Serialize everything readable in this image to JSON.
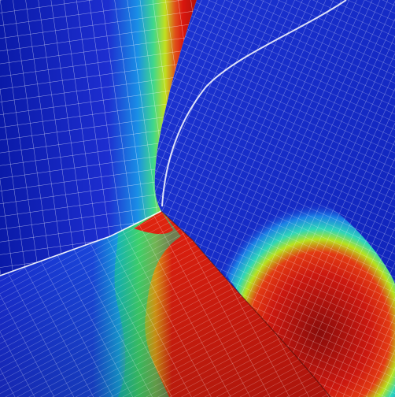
{
  "image": {
    "subject": "finite-element-mesh-contour-plot",
    "colormap": [
      "#0a1a9e",
      "#1f3fe0",
      "#1aa3e8",
      "#22d4b0",
      "#46e046",
      "#b8e81c",
      "#e8a014",
      "#e02416",
      "#a8140e"
    ],
    "mesh_line_color": "#ffffff",
    "background_color": "#ffffff"
  }
}
